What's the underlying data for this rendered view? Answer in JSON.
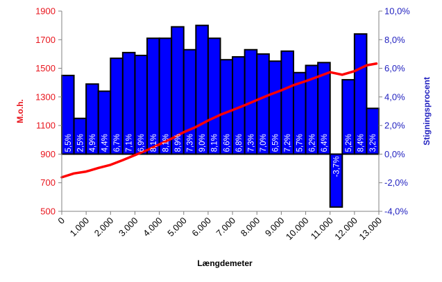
{
  "chart_data": {
    "type": "bar+line",
    "title": "",
    "xlabel": "Længdemeter",
    "ylabel_left": "M.o.h.",
    "ylabel_right": "Stigningsprocent",
    "x_ticks": [
      "0",
      "1.000",
      "2.000",
      "3.000",
      "4.000",
      "5.000",
      "6.000",
      "7.000",
      "8.000",
      "9.000",
      "10.000",
      "11.000",
      "12.000",
      "13.000"
    ],
    "xlim": [
      0,
      13000
    ],
    "y_left": {
      "ticks": [
        "500",
        "700",
        "900",
        "1100",
        "1300",
        "1500",
        "1700",
        "1900"
      ],
      "lim": [
        500,
        1900
      ]
    },
    "y_right": {
      "ticks": [
        "-4,0%",
        "-2,0%",
        "0,0%",
        "2,0%",
        "4,0%",
        "6,0%",
        "8,0%",
        "10,0%"
      ],
      "lim": [
        -4,
        10
      ]
    },
    "grid": false,
    "legend": "none",
    "series": [
      {
        "axis": "right",
        "chart": "bar",
        "color": "#0000ff",
        "edge_color": "#000000",
        "bar_width": 500,
        "x": [
          250,
          750,
          1250,
          1750,
          2250,
          2750,
          3250,
          3750,
          4250,
          4750,
          5250,
          5750,
          6250,
          6750,
          7250,
          7750,
          8250,
          8750,
          9250,
          9750,
          10250,
          10750,
          11250,
          11750,
          12250,
          12750
        ],
        "values": [
          5.5,
          2.5,
          4.9,
          4.4,
          6.7,
          7.1,
          6.9,
          8.1,
          8.1,
          8.9,
          7.3,
          9.0,
          8.1,
          6.6,
          6.8,
          7.3,
          7.0,
          6.5,
          7.2,
          5.7,
          6.2,
          6.4,
          -3.7,
          5.2,
          8.4,
          3.2
        ],
        "labels": [
          "5,5%",
          "2,5%",
          "4,9%",
          "4,4%",
          "6,7%",
          "7,1%",
          "6,9%",
          "8,1%",
          "8,1%",
          "8,9%",
          "7,3%",
          "9,0%",
          "8,1%",
          "6,6%",
          "6,8%",
          "7,3%",
          "7,0%",
          "6,5%",
          "7,2%",
          "5,7%",
          "6,2%",
          "6,4%",
          "-3,7%",
          "5,2%",
          "8,4%",
          "3,2%"
        ]
      },
      {
        "axis": "left",
        "chart": "line",
        "color": "#ff0000",
        "x": [
          0,
          500,
          1000,
          1500,
          2000,
          2500,
          3000,
          3500,
          4000,
          4500,
          5000,
          5500,
          6000,
          6500,
          7000,
          7500,
          8000,
          8500,
          9000,
          9500,
          10000,
          10500,
          11000,
          11500,
          12000,
          12500,
          12900
        ],
        "values": [
          738,
          765,
          778,
          803,
          825,
          858,
          893,
          928,
          968,
          1008,
          1053,
          1090,
          1135,
          1175,
          1208,
          1242,
          1278,
          1314,
          1346,
          1382,
          1410,
          1441,
          1473,
          1455,
          1480,
          1521,
          1533
        ]
      }
    ]
  }
}
